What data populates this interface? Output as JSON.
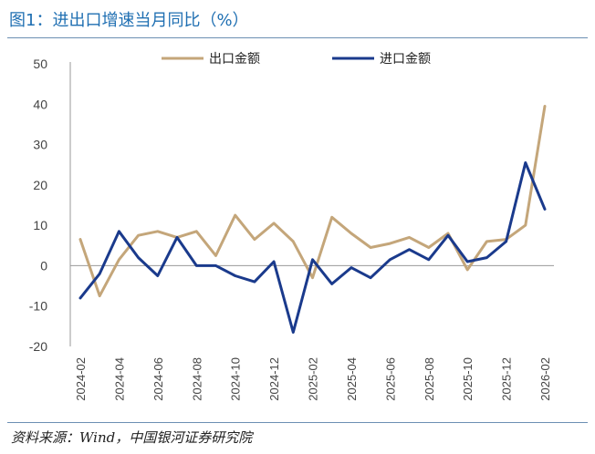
{
  "header": {
    "title": "图1：进出口增速当月同比（%）"
  },
  "footer": {
    "source": "资料来源：Wind，中国银河证券研究院"
  },
  "colors": {
    "export": "#c4a67a",
    "import": "#1a3a8c",
    "title": "#1f6fb2",
    "axis": "#999999"
  },
  "chart_data": {
    "type": "line",
    "title": "进出口增速当月同比（%）",
    "xlabel": "",
    "ylabel": "",
    "ylim": [
      -20,
      50
    ],
    "yticks": [
      -20,
      -10,
      0,
      10,
      20,
      30,
      40,
      50
    ],
    "x": [
      "2024-02",
      "2024-03",
      "2024-04",
      "2024-05",
      "2024-06",
      "2024-07",
      "2024-08",
      "2024-09",
      "2024-10",
      "2024-11",
      "2024-12",
      "2025-01",
      "2025-02",
      "2025-03",
      "2025-04",
      "2025-05",
      "2025-06",
      "2025-07",
      "2025-08",
      "2025-09",
      "2025-10",
      "2025-11",
      "2025-12",
      "2026-01",
      "2026-02"
    ],
    "xtick_labels": [
      "2024-02",
      "2024-04",
      "2024-06",
      "2024-08",
      "2024-10",
      "2024-12",
      "2025-02",
      "2025-04",
      "2025-06",
      "2025-08",
      "2025-10",
      "2025-12",
      "2026-02"
    ],
    "legend_position": "top",
    "series": [
      {
        "name": "出口金额",
        "values": [
          6.5,
          -7.5,
          1.5,
          7.5,
          8.5,
          7.0,
          8.5,
          2.5,
          12.5,
          6.5,
          10.5,
          6.0,
          -3.0,
          12.0,
          8.0,
          4.5,
          5.5,
          7.0,
          4.5,
          8.0,
          -1.0,
          6.0,
          6.5,
          10.0,
          39.5
        ]
      },
      {
        "name": "进口金额",
        "values": [
          -8.0,
          -2.0,
          8.5,
          2.0,
          -2.5,
          7.0,
          0.0,
          0.0,
          -2.5,
          -4.0,
          1.0,
          -16.5,
          1.5,
          -4.5,
          -0.5,
          -3.0,
          1.5,
          4.0,
          1.5,
          7.5,
          1.0,
          2.0,
          6.0,
          25.5,
          14.0
        ]
      }
    ]
  }
}
